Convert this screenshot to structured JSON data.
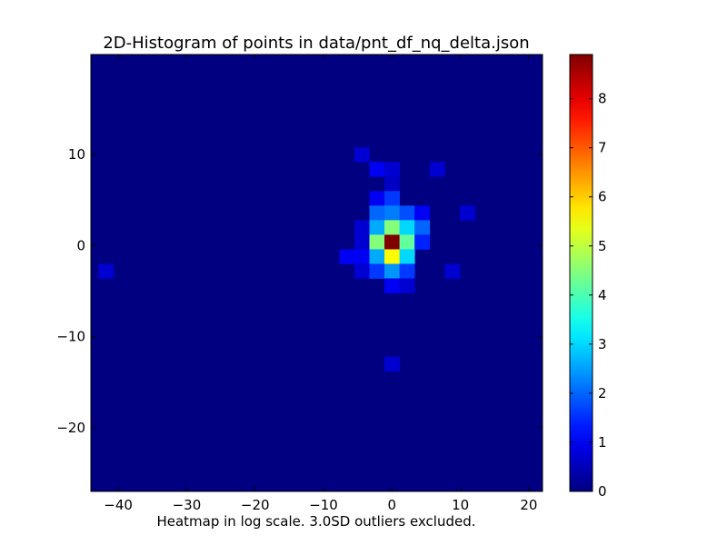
{
  "chart_data": {
    "type": "heatmap",
    "title": "2D-Histogram of points in data/pnt_df_nq_delta.json",
    "xlabel": "Heatmap in log scale. 3.0SD outliers excluded.",
    "ylabel": "",
    "xlim": [
      -44,
      22
    ],
    "ylim": [
      -27,
      21
    ],
    "x_bins": 30,
    "y_bins": 30,
    "x_ticks": [
      -40,
      -30,
      -20,
      -10,
      0,
      10,
      20
    ],
    "y_ticks": [
      -20,
      -10,
      0,
      10
    ],
    "x_tick_labels": [
      "−40",
      "−30",
      "−20",
      "−10",
      "0",
      "10",
      "20"
    ],
    "y_tick_labels": [
      "−20",
      "−10",
      "0",
      "10"
    ],
    "background_value": 0,
    "colormap": "jet",
    "colorbar": {
      "min": 0,
      "max": 8.9,
      "ticks": [
        0,
        1,
        2,
        3,
        4,
        5,
        6,
        7,
        8
      ],
      "tick_labels": [
        "0",
        "1",
        "2",
        "3",
        "4",
        "5",
        "6",
        "7",
        "8"
      ]
    },
    "cells": [
      {
        "x": -4.4,
        "y": 10.0,
        "value": 0.7
      },
      {
        "x": -2.2,
        "y": 8.4,
        "value": 1.0
      },
      {
        "x": 0.0,
        "y": 8.4,
        "value": 0.7
      },
      {
        "x": 6.6,
        "y": 8.4,
        "value": 0.7
      },
      {
        "x": 0.0,
        "y": 6.8,
        "value": 0.6
      },
      {
        "x": -2.2,
        "y": 5.2,
        "value": 1.0
      },
      {
        "x": 0.0,
        "y": 5.2,
        "value": 1.6
      },
      {
        "x": -2.2,
        "y": 3.6,
        "value": 2.0
      },
      {
        "x": 0.0,
        "y": 3.6,
        "value": 2.2
      },
      {
        "x": 2.2,
        "y": 3.6,
        "value": 1.8
      },
      {
        "x": 4.4,
        "y": 3.6,
        "value": 1.0
      },
      {
        "x": 11.0,
        "y": 3.6,
        "value": 0.7
      },
      {
        "x": -4.4,
        "y": 2.0,
        "value": 0.7
      },
      {
        "x": -2.2,
        "y": 2.0,
        "value": 2.6
      },
      {
        "x": 0.0,
        "y": 2.0,
        "value": 4.5
      },
      {
        "x": 2.2,
        "y": 2.0,
        "value": 3.0
      },
      {
        "x": 4.4,
        "y": 2.0,
        "value": 2.0
      },
      {
        "x": -4.4,
        "y": 0.4,
        "value": 0.7
      },
      {
        "x": -2.2,
        "y": 0.4,
        "value": 4.5
      },
      {
        "x": 0.0,
        "y": 0.4,
        "value": 8.9
      },
      {
        "x": 2.2,
        "y": 0.4,
        "value": 4.2
      },
      {
        "x": 4.4,
        "y": 0.4,
        "value": 1.4
      },
      {
        "x": -6.6,
        "y": -1.2,
        "value": 1.0
      },
      {
        "x": -4.4,
        "y": -1.2,
        "value": 1.0
      },
      {
        "x": -2.2,
        "y": -1.2,
        "value": 2.6
      },
      {
        "x": 0.0,
        "y": -1.2,
        "value": 5.6
      },
      {
        "x": 2.2,
        "y": -1.2,
        "value": 3.0
      },
      {
        "x": -41.8,
        "y": -2.8,
        "value": 0.7
      },
      {
        "x": -4.4,
        "y": -2.8,
        "value": 0.7
      },
      {
        "x": -2.2,
        "y": -2.8,
        "value": 1.6
      },
      {
        "x": 0.0,
        "y": -2.8,
        "value": 2.4
      },
      {
        "x": 2.2,
        "y": -2.8,
        "value": 1.6
      },
      {
        "x": 8.8,
        "y": -2.8,
        "value": 0.7
      },
      {
        "x": 0.0,
        "y": -4.4,
        "value": 1.0
      },
      {
        "x": 2.2,
        "y": -4.4,
        "value": 0.7
      },
      {
        "x": 0.0,
        "y": -13.0,
        "value": 0.7
      }
    ]
  }
}
